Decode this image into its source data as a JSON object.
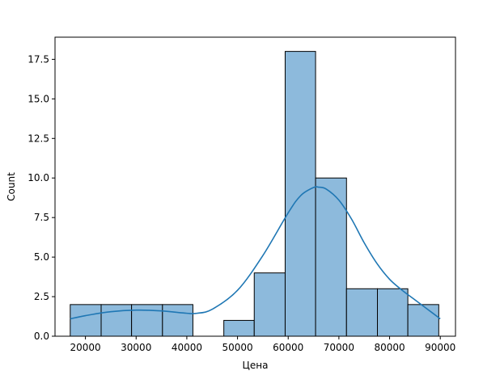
{
  "chart_data": {
    "type": "bar",
    "xlabel": "Цена",
    "ylabel": "Count",
    "xlim": [
      14000,
      93000
    ],
    "ylim": [
      0,
      18.9
    ],
    "xticks": [
      20000,
      30000,
      40000,
      50000,
      60000,
      70000,
      80000,
      90000
    ],
    "yticks": [
      0.0,
      2.5,
      5.0,
      7.5,
      10.0,
      12.5,
      15.0,
      17.5
    ],
    "ytick_labels": [
      "0.0",
      "2.5",
      "5.0",
      "7.5",
      "10.0",
      "12.5",
      "15.0",
      "17.5"
    ],
    "bin_edges": [
      17000,
      23100,
      29100,
      35200,
      41200,
      47300,
      53300,
      59400,
      65400,
      71500,
      77600,
      83600,
      89700
    ],
    "counts": [
      2,
      2,
      2,
      2,
      0,
      1,
      4,
      18,
      10,
      3,
      3,
      2
    ],
    "kde_curve": {
      "x": [
        17000,
        20000,
        25000,
        30000,
        35000,
        40000,
        42000,
        45000,
        50000,
        55000,
        60000,
        62500,
        65000,
        66000,
        67500,
        70000,
        72500,
        75000,
        77500,
        80000,
        82500,
        85000,
        87500,
        90000
      ],
      "y": [
        1.1,
        1.3,
        1.55,
        1.65,
        1.6,
        1.45,
        1.45,
        1.7,
        2.9,
        5.1,
        7.8,
        8.9,
        9.4,
        9.42,
        9.3,
        8.6,
        7.4,
        5.9,
        4.6,
        3.6,
        2.9,
        2.3,
        1.7,
        1.1
      ]
    },
    "colors": {
      "bar_fill": "#8dbadc",
      "bar_edge": "#000000",
      "kde_line": "#1f77b4",
      "axes": "#000000"
    },
    "grid": false,
    "legend": "none"
  }
}
